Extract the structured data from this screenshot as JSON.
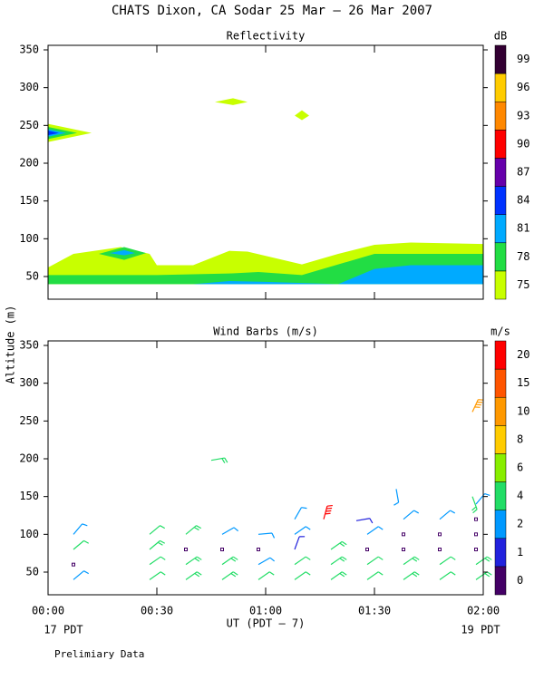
{
  "title": "CHATS Dixon, CA  Sodar  25 Mar – 26 Mar 2007",
  "y_label": "Altitude (m)",
  "x_label": "UT  (PDT – 7)",
  "x_start_label": "17 PDT",
  "x_end_label": "19 PDT",
  "note": "Prelimiary Data",
  "chart_data": [
    {
      "type": "contour",
      "title": "Reflectivity",
      "unit": "dB",
      "xlim": [
        0,
        120
      ],
      "xticks": [
        0,
        30,
        60,
        90,
        120
      ],
      "ylim": [
        20,
        356
      ],
      "yticks": [
        50,
        100,
        150,
        200,
        250,
        300,
        350
      ],
      "levels": [
        75,
        78,
        81,
        84,
        87,
        90,
        93,
        96,
        99
      ],
      "colors": [
        "#c8ff00",
        "#22dd44",
        "#00aaff",
        "#0033ff",
        "#6600aa",
        "#ff0000",
        "#ff8800",
        "#ffcc00",
        "#330033"
      ],
      "contours": [
        {
          "level": 75,
          "points": [
            [
              0,
              40
            ],
            [
              0,
              62
            ],
            [
              7,
              80
            ],
            [
              20,
              89
            ],
            [
              28,
              80
            ],
            [
              30,
              65
            ],
            [
              40,
              65
            ],
            [
              50,
              84
            ],
            [
              55,
              83
            ],
            [
              70,
              66
            ],
            [
              80,
              80
            ],
            [
              90,
              92
            ],
            [
              100,
              95
            ],
            [
              120,
              93
            ],
            [
              120,
              40
            ]
          ]
        },
        {
          "level": 78,
          "points": [
            [
              0,
              40
            ],
            [
              0,
              52
            ],
            [
              30,
              52
            ],
            [
              50,
              54
            ],
            [
              58,
              56
            ],
            [
              70,
              52
            ],
            [
              90,
              80
            ],
            [
              120,
              80
            ],
            [
              120,
              40
            ]
          ]
        },
        {
          "level": 78,
          "points": [
            [
              14,
              80
            ],
            [
              21,
              89
            ],
            [
              27,
              81
            ],
            [
              21,
              72
            ]
          ]
        },
        {
          "level": 81,
          "points": [
            [
              17,
              81
            ],
            [
              21,
              85
            ],
            [
              24,
              81
            ],
            [
              21,
              78
            ]
          ]
        },
        {
          "level": 81,
          "points": [
            [
              40,
              40
            ],
            [
              50,
              44
            ],
            [
              60,
              43
            ],
            [
              80,
              40
            ],
            [
              90,
              60
            ],
            [
              100,
              65
            ],
            [
              120,
              65
            ],
            [
              120,
              40
            ]
          ]
        },
        {
          "level": 75,
          "points": [
            [
              0,
              228
            ],
            [
              0,
              252
            ],
            [
              12,
              240
            ]
          ]
        },
        {
          "level": 78,
          "points": [
            [
              0,
              232
            ],
            [
              0,
              248
            ],
            [
              8,
              240
            ]
          ]
        },
        {
          "level": 81,
          "points": [
            [
              0,
              235
            ],
            [
              0,
              245
            ],
            [
              5,
              240
            ]
          ]
        },
        {
          "level": 84,
          "points": [
            [
              0,
              237
            ],
            [
              0,
              243
            ],
            [
              3,
              240
            ]
          ]
        },
        {
          "level": 75,
          "points": [
            [
              46,
              281
            ],
            [
              51,
              286
            ],
            [
              55,
              281
            ],
            [
              51,
              277
            ]
          ]
        },
        {
          "level": 75,
          "points": [
            [
              68,
              263
            ],
            [
              70,
              270
            ],
            [
              72,
              263
            ],
            [
              70,
              257
            ]
          ]
        }
      ]
    },
    {
      "type": "barbs",
      "title": "Wind Barbs (m/s)",
      "unit": "m/s",
      "xlim": [
        0,
        120
      ],
      "xticks": [
        {
          "value": 0,
          "label": "00:00"
        },
        {
          "value": 30,
          "label": "00:30"
        },
        {
          "value": 60,
          "label": "01:00"
        },
        {
          "value": 90,
          "label": "01:30"
        },
        {
          "value": 120,
          "label": "02:00"
        }
      ],
      "ylim": [
        20,
        356
      ],
      "yticks": [
        50,
        100,
        150,
        200,
        250,
        300,
        350
      ],
      "levels": [
        0,
        1,
        2,
        4,
        6,
        8,
        10,
        15,
        20
      ],
      "colors": [
        "#440066",
        "#2222dd",
        "#0099ff",
        "#22dd66",
        "#88ee00",
        "#ffcc00",
        "#ff9900",
        "#ff5500",
        "#ff0000"
      ],
      "time": [
        7,
        7,
        7,
        7,
        28,
        28,
        28,
        28,
        38,
        38,
        38,
        38,
        45,
        48,
        48,
        48,
        48,
        58,
        58,
        58,
        58,
        68,
        68,
        68,
        68,
        68,
        78,
        78,
        78,
        76,
        88,
        88,
        88,
        88,
        85,
        98,
        98,
        98,
        98,
        98,
        96,
        108,
        108,
        108,
        108,
        108,
        118,
        118,
        118,
        118,
        118,
        118,
        117,
        117
      ],
      "altitude": [
        40,
        60,
        80,
        100,
        40,
        60,
        80,
        100,
        40,
        60,
        80,
        100,
        198,
        40,
        60,
        80,
        100,
        40,
        60,
        80,
        100,
        40,
        60,
        80,
        100,
        120,
        40,
        60,
        80,
        120,
        40,
        60,
        80,
        100,
        118,
        40,
        60,
        80,
        100,
        120,
        160,
        40,
        60,
        80,
        100,
        120,
        40,
        60,
        80,
        100,
        120,
        140,
        150,
        262
      ],
      "speed": [
        3,
        0.5,
        4,
        3,
        4,
        4,
        5,
        4,
        5,
        5,
        0.5,
        5,
        5,
        5,
        5,
        0.5,
        3,
        4,
        3,
        0.5,
        3,
        4,
        4,
        1,
        3,
        3,
        5,
        5,
        5,
        20,
        4,
        4,
        0.5,
        3,
        1,
        5,
        5,
        0.5,
        0.5,
        3,
        3,
        4,
        4,
        0.5,
        0.5,
        3,
        5,
        5,
        0.5,
        0.5,
        0.5,
        3,
        5,
        12
      ],
      "direction": [
        50,
        0,
        50,
        40,
        55,
        55,
        50,
        50,
        55,
        55,
        0,
        50,
        80,
        55,
        55,
        0,
        60,
        55,
        60,
        0,
        85,
        55,
        55,
        20,
        55,
        30,
        55,
        55,
        55,
        15,
        55,
        55,
        0,
        55,
        80,
        55,
        55,
        0,
        0,
        50,
        170,
        55,
        55,
        0,
        0,
        50,
        55,
        55,
        0,
        0,
        0,
        40,
        160,
        25
      ]
    }
  ]
}
